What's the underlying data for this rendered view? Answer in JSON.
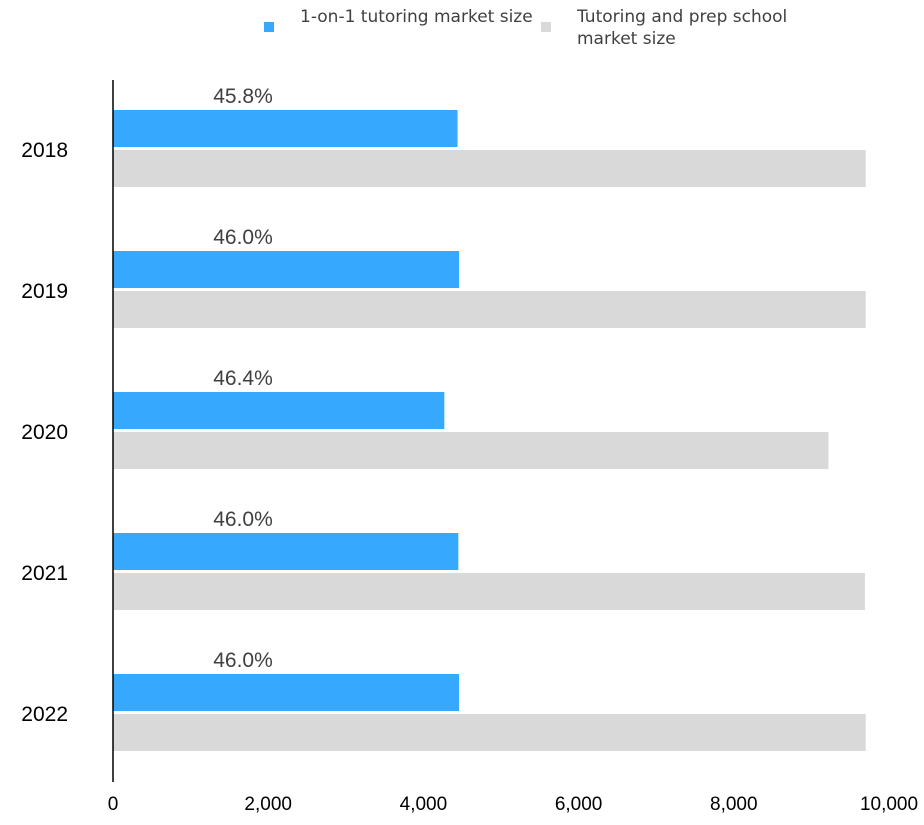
{
  "chart_data": {
    "type": "bar",
    "orientation": "horizontal",
    "categories": [
      "2018",
      "2019",
      "2020",
      "2021",
      "2022"
    ],
    "series": [
      {
        "name": "1-on-1 tutoring market size",
        "color": "#36A9FF",
        "values": [
          4440,
          4460,
          4270,
          4450,
          4460
        ],
        "data_labels": [
          "45.8%",
          "46.0%",
          "46.4%",
          "46.0%",
          "46.0%"
        ]
      },
      {
        "name": "Tutoring and prep school market size",
        "color": "#D9D9D9",
        "values": [
          9700,
          9700,
          9220,
          9690,
          9700
        ]
      }
    ],
    "xlim": [
      0,
      10000
    ],
    "xticks": [
      0,
      2000,
      4000,
      6000,
      8000,
      10000
    ],
    "xtick_labels": [
      "0",
      "2,000",
      "4,000",
      "6,000",
      "8,000",
      "10,000"
    ],
    "grid": false,
    "legend_position": "top"
  }
}
